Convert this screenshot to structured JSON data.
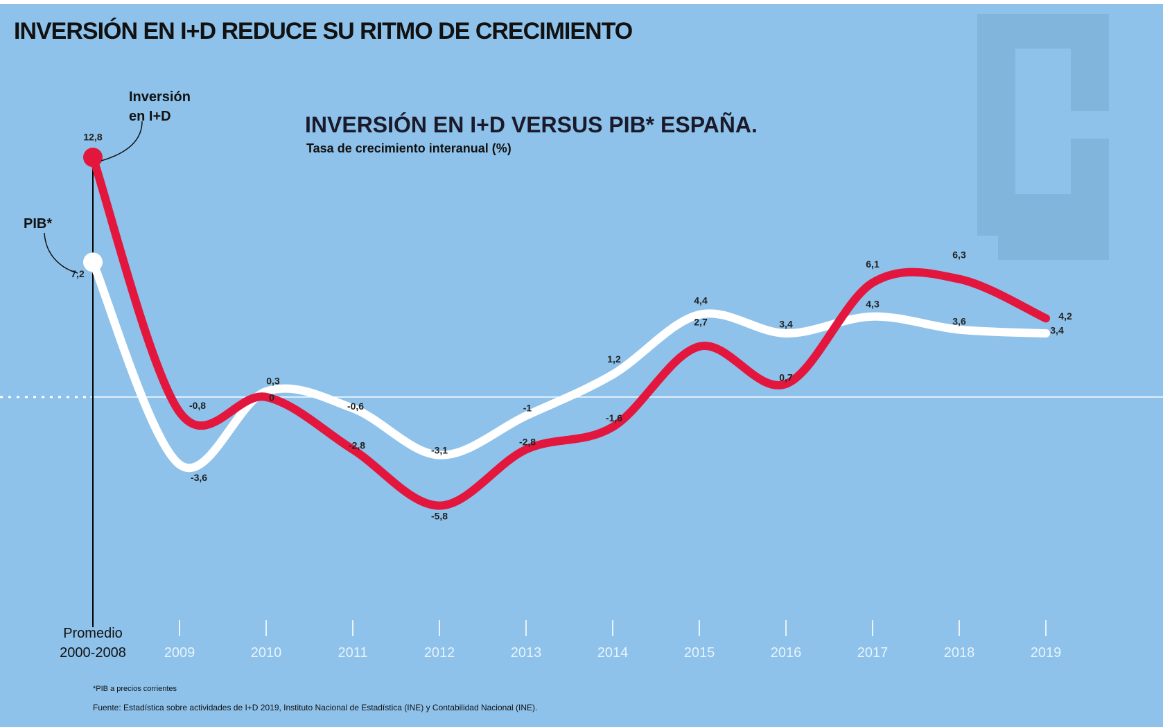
{
  "chart_data": {
    "type": "line",
    "title": "INVERSIÓN EN I+D REDUCE SU RITMO DE CRECIMIENTO",
    "subtitle": "INVERSIÓN EN I+D VERSUS PIB* ESPAÑA.",
    "y_label": "Tasa de crecimiento interanual (%)",
    "categories": [
      "Promedio 2000-2008",
      "2009",
      "2010",
      "2011",
      "2012",
      "2013",
      "2014",
      "2015",
      "2016",
      "2017",
      "2018",
      "2019"
    ],
    "series": [
      {
        "name": "Inversión en I+D",
        "color": "#e3173e",
        "values": [
          12.8,
          -0.8,
          0,
          -2.8,
          -5.8,
          -2.8,
          -1.6,
          2.7,
          0.7,
          6.1,
          6.3,
          4.2
        ],
        "value_labels": [
          "12,8",
          "-0,8",
          "0",
          "-2,8",
          "-5,8",
          "-2,8",
          "-1,6",
          "2,7",
          "0,7",
          "6,1",
          "6,3",
          "4,2"
        ]
      },
      {
        "name": "PIB*",
        "color": "#ffffff",
        "values": [
          7.2,
          -3.6,
          0.3,
          -0.6,
          -3.1,
          -1,
          1.2,
          4.4,
          3.4,
          4.3,
          3.6,
          3.4
        ],
        "value_labels": [
          "7,2",
          "-3,6",
          "0,3",
          "-0,6",
          "-3,1",
          "-1",
          "1,2",
          "4,4",
          "3,4",
          "4,3",
          "3,6",
          "3,4"
        ]
      }
    ],
    "ylim": [
      -9.7,
      17.5
    ],
    "footnote": "*PIB a precios corrientes",
    "source": "Fuente: Estadística sobre actividades de I+D 2019, Instituto Nacional de Estadística (INE) y Contabilidad Nacional (INE)."
  }
}
